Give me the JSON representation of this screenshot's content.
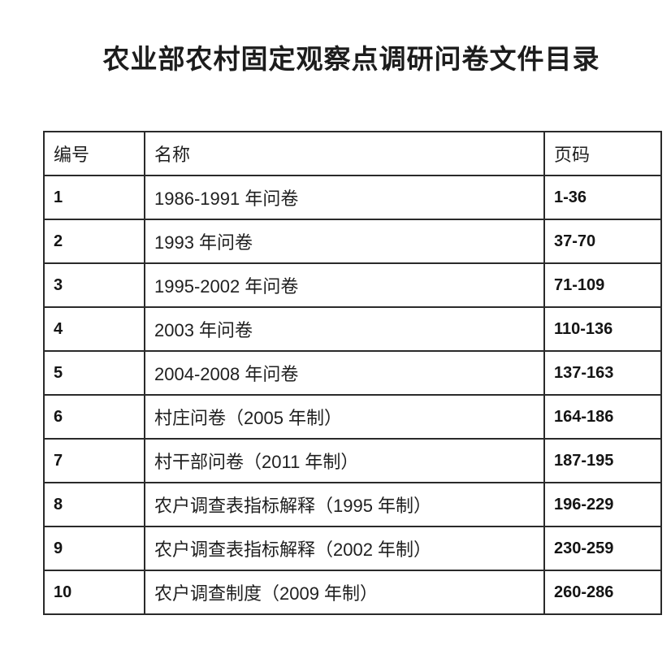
{
  "title": "农业部农村固定观察点调研问卷文件目录",
  "colors": {
    "background": "#ffffff",
    "text": "#1f1f1f",
    "table_border": "#2a2a2a"
  },
  "table": {
    "headers": {
      "id": "编号",
      "name": "名称",
      "pages": "页码"
    },
    "rows": [
      {
        "id": "1",
        "name": "1986-1991 年问卷",
        "pages": "1-36"
      },
      {
        "id": "2",
        "name": "1993 年问卷",
        "pages": "37-70"
      },
      {
        "id": "3",
        "name": "1995-2002 年问卷",
        "pages": "71-109"
      },
      {
        "id": "4",
        "name": "2003 年问卷",
        "pages": "110-136"
      },
      {
        "id": "5",
        "name": "2004-2008 年问卷",
        "pages": "137-163"
      },
      {
        "id": "6",
        "name": "村庄问卷（2005 年制）",
        "pages": "164-186"
      },
      {
        "id": "7",
        "name": "村干部问卷（2011 年制）",
        "pages": "187-195"
      },
      {
        "id": "8",
        "name": "农户调查表指标解释（1995 年制）",
        "pages": "196-229"
      },
      {
        "id": "9",
        "name": "农户调查表指标解释（2002 年制）",
        "pages": "230-259"
      },
      {
        "id": "10",
        "name": "农户调查制度（2009 年制）",
        "pages": "260-286"
      }
    ]
  }
}
